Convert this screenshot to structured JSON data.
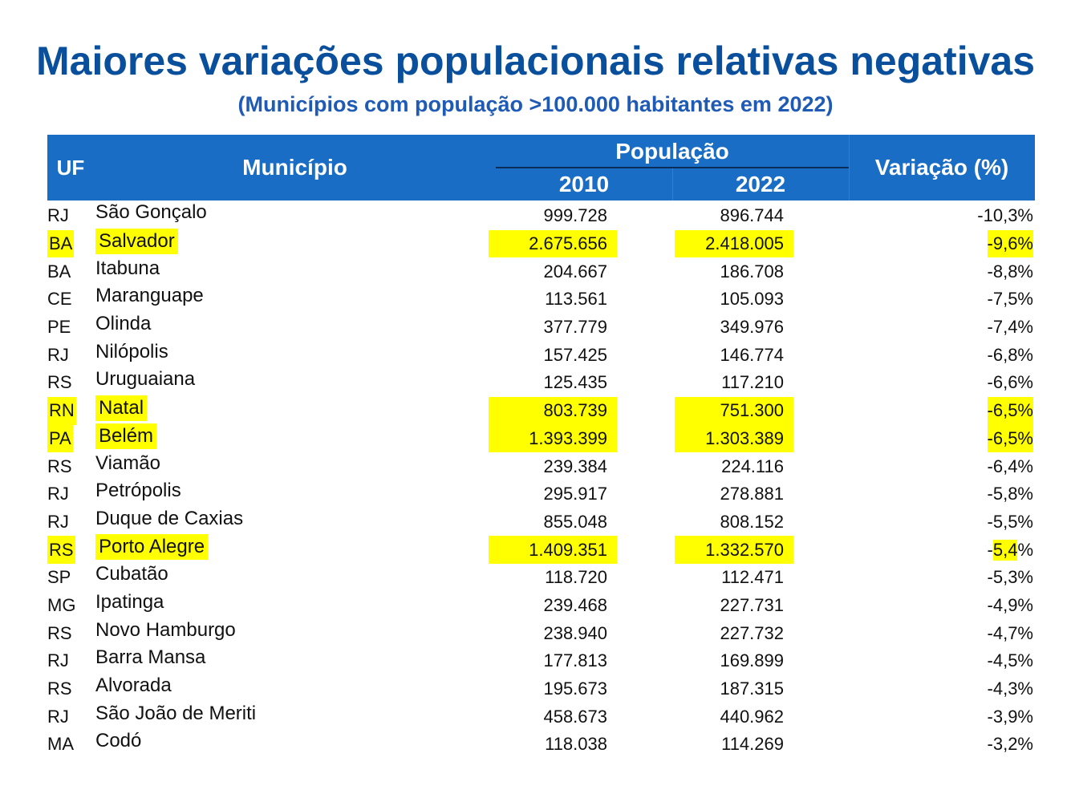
{
  "title": "Maiores variações populacionais relativas negativas",
  "subtitle": "(Municípios com população >100.000 habitantes em 2022)",
  "header": {
    "uf": "UF",
    "municipio": "Município",
    "populacao": "População",
    "year1": "2010",
    "year2": "2022",
    "variacao": "Variação (%)"
  },
  "highlight_color": "#ffff00",
  "header_color": "#1a6dc5",
  "title_color": "#0a4f9c",
  "rows": [
    {
      "uf": "RJ",
      "municipio": "São Gonçalo",
      "p2010": "999.728",
      "p2022": "896.744",
      "variacao": "-10,3%",
      "highlight": false
    },
    {
      "uf": "BA",
      "municipio": "Salvador",
      "p2010": "2.675.656",
      "p2022": "2.418.005",
      "variacao": "-9,6%",
      "highlight": true
    },
    {
      "uf": "BA",
      "municipio": "Itabuna",
      "p2010": "204.667",
      "p2022": "186.708",
      "variacao": "-8,8%",
      "highlight": false
    },
    {
      "uf": "CE",
      "municipio": "Maranguape",
      "p2010": "113.561",
      "p2022": "105.093",
      "variacao": "-7,5%",
      "highlight": false
    },
    {
      "uf": "PE",
      "municipio": "Olinda",
      "p2010": "377.779",
      "p2022": "349.976",
      "variacao": "-7,4%",
      "highlight": false
    },
    {
      "uf": "RJ",
      "municipio": "Nilópolis",
      "p2010": "157.425",
      "p2022": "146.774",
      "variacao": "-6,8%",
      "highlight": false
    },
    {
      "uf": "RS",
      "municipio": "Uruguaiana",
      "p2010": "125.435",
      "p2022": "117.210",
      "variacao": "-6,6%",
      "highlight": false
    },
    {
      "uf": "RN",
      "municipio": "Natal",
      "p2010": "803.739",
      "p2022": "751.300",
      "variacao": "-6,5%",
      "highlight": true
    },
    {
      "uf": "PA",
      "municipio": "Belém",
      "p2010": "1.393.399",
      "p2022": "1.303.389",
      "variacao": "-6,5%",
      "highlight": true
    },
    {
      "uf": "RS",
      "municipio": "Viamão",
      "p2010": "239.384",
      "p2022": "224.116",
      "variacao": "-6,4%",
      "highlight": false
    },
    {
      "uf": "RJ",
      "municipio": "Petrópolis",
      "p2010": "295.917",
      "p2022": "278.881",
      "variacao": "-5,8%",
      "highlight": false
    },
    {
      "uf": "RJ",
      "municipio": "Duque de Caxias",
      "p2010": "855.048",
      "p2022": "808.152",
      "variacao": "-5,5%",
      "highlight": false
    },
    {
      "uf": "RS",
      "municipio": "Porto Alegre",
      "p2010": "1.409.351",
      "p2022": "1.332.570",
      "variacao": "-5,4%",
      "highlight": true
    },
    {
      "uf": "SP",
      "municipio": "Cubatão",
      "p2010": "118.720",
      "p2022": "112.471",
      "variacao": "-5,3%",
      "highlight": false
    },
    {
      "uf": "MG",
      "municipio": "Ipatinga",
      "p2010": "239.468",
      "p2022": "227.731",
      "variacao": "-4,9%",
      "highlight": false
    },
    {
      "uf": "RS",
      "municipio": "Novo Hamburgo",
      "p2010": "238.940",
      "p2022": "227.732",
      "variacao": "-4,7%",
      "highlight": false
    },
    {
      "uf": "RJ",
      "municipio": "Barra Mansa",
      "p2010": "177.813",
      "p2022": "169.899",
      "variacao": "-4,5%",
      "highlight": false
    },
    {
      "uf": "RS",
      "municipio": "Alvorada",
      "p2010": "195.673",
      "p2022": "187.315",
      "variacao": "-4,3%",
      "highlight": false
    },
    {
      "uf": "RJ",
      "municipio": "São João de Meriti",
      "p2010": "458.673",
      "p2022": "440.962",
      "variacao": "-3,9%",
      "highlight": false
    },
    {
      "uf": "MA",
      "municipio": "Codó",
      "p2010": "118.038",
      "p2022": "114.269",
      "variacao": "-3,2%",
      "highlight": false
    }
  ]
}
